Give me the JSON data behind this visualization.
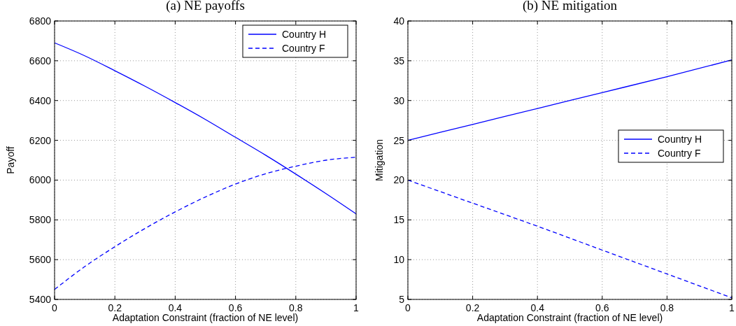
{
  "chart_data": [
    {
      "type": "line",
      "title": "(a) NE payoffs",
      "xlabel": "Adaptation Constraint (fraction of NE level)",
      "ylabel": "Payoff",
      "x": [
        0,
        0.1,
        0.2,
        0.3,
        0.4,
        0.5,
        0.6,
        0.7,
        0.8,
        0.9,
        1
      ],
      "xlim": [
        0,
        1
      ],
      "xticks": [
        0,
        0.2,
        0.4,
        0.6,
        0.8,
        1
      ],
      "ylim": [
        5400,
        6800
      ],
      "yticks": [
        5400,
        5600,
        5800,
        6000,
        6200,
        6400,
        6600,
        6800
      ],
      "grid": true,
      "legend": "top right",
      "series": [
        {
          "name": "Country H",
          "color": "#0000ff",
          "line_style": "solid",
          "values": [
            6690,
            6625,
            6550,
            6472,
            6390,
            6305,
            6215,
            6125,
            6030,
            5932,
            5830
          ]
        },
        {
          "name": "Country F",
          "color": "#0000ff",
          "line_style": "dashed",
          "values": [
            5450,
            5565,
            5665,
            5757,
            5840,
            5915,
            5980,
            6032,
            6070,
            6100,
            6115
          ]
        }
      ]
    },
    {
      "type": "line",
      "title": "(b) NE mitigation",
      "xlabel": "Adaptation Constraint (fraction of NE level)",
      "ylabel": "Mitigation",
      "x": [
        0,
        0.2,
        0.4,
        0.6,
        0.8,
        1
      ],
      "xlim": [
        0,
        1
      ],
      "xticks": [
        0,
        0.2,
        0.4,
        0.6,
        0.8,
        1
      ],
      "ylim": [
        5,
        40
      ],
      "yticks": [
        5,
        10,
        15,
        20,
        25,
        30,
        35,
        40
      ],
      "grid": true,
      "legend": "right",
      "series": [
        {
          "name": "Country H",
          "color": "#0000ff",
          "line_style": "solid",
          "values": [
            25,
            27,
            29,
            31,
            33,
            35.1
          ]
        },
        {
          "name": "Country F",
          "color": "#0000ff",
          "line_style": "dashed",
          "values": [
            20,
            17.1,
            14.2,
            11.2,
            8.2,
            5.2
          ]
        }
      ]
    }
  ]
}
